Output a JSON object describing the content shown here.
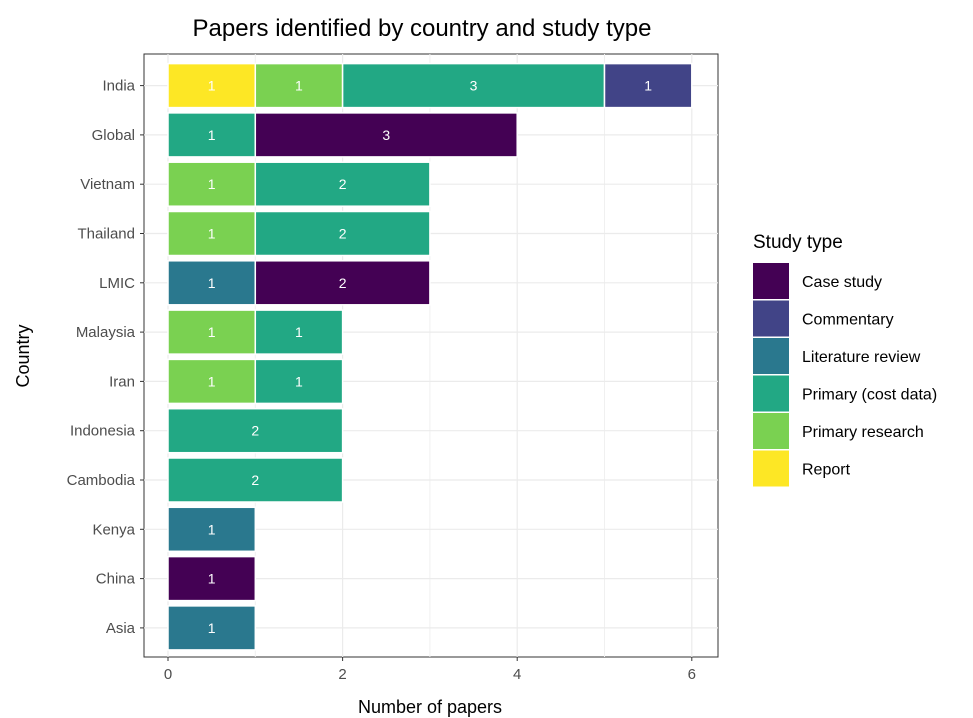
{
  "chart_data": {
    "type": "bar",
    "orientation": "horizontal",
    "stacked": true,
    "title": "Papers identified by country and study type",
    "xlabel": "Number of papers",
    "ylabel": "Country",
    "xlim": [
      0,
      6
    ],
    "x_ticks": [
      "0",
      "2",
      "4",
      "6"
    ],
    "grid": true,
    "legend_title": "Study type",
    "legend_position": "right",
    "categories": [
      "India",
      "Global",
      "Vietnam",
      "Thailand",
      "LMIC",
      "Malaysia",
      "Iran",
      "Indonesia",
      "Cambodia",
      "Kenya",
      "China",
      "Asia"
    ],
    "stack_order": [
      "Report",
      "Primary research",
      "Literature review",
      "Primary (cost data)",
      "Case study",
      "Commentary"
    ],
    "series": [
      {
        "name": "Case study",
        "color": "#440154",
        "values": [
          0,
          3,
          0,
          0,
          2,
          0,
          0,
          0,
          0,
          0,
          1,
          0
        ]
      },
      {
        "name": "Commentary",
        "color": "#414487",
        "values": [
          1,
          0,
          0,
          0,
          0,
          0,
          0,
          0,
          0,
          0,
          0,
          0
        ]
      },
      {
        "name": "Literature review",
        "color": "#2a788e",
        "values": [
          0,
          0,
          0,
          0,
          1,
          0,
          0,
          0,
          0,
          1,
          0,
          1
        ]
      },
      {
        "name": "Primary (cost data)",
        "color": "#22a884",
        "values": [
          3,
          1,
          2,
          2,
          0,
          1,
          1,
          2,
          2,
          0,
          0,
          0
        ]
      },
      {
        "name": "Primary research",
        "color": "#7ad151",
        "values": [
          1,
          0,
          1,
          1,
          0,
          1,
          1,
          0,
          0,
          0,
          0,
          0
        ]
      },
      {
        "name": "Report",
        "color": "#fde725",
        "values": [
          1,
          0,
          0,
          0,
          0,
          0,
          0,
          0,
          0,
          0,
          0,
          0
        ]
      }
    ]
  }
}
